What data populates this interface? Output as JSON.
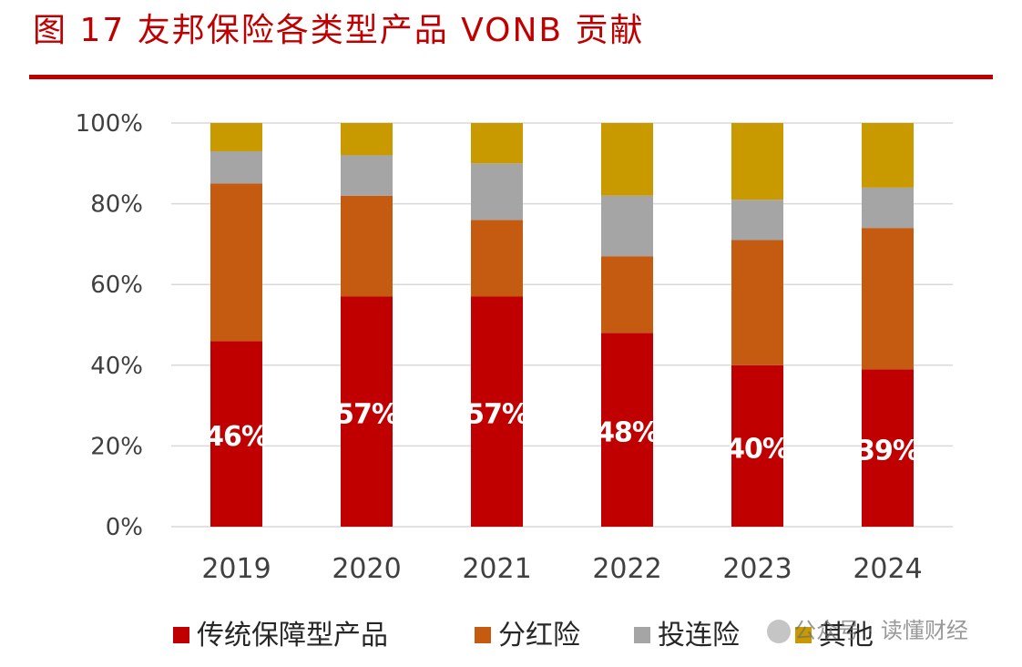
{
  "header": {
    "title": "图 17 友邦保险各类型产品 VONB 贡献"
  },
  "watermark": {
    "text": "公众号 · 读懂财经"
  },
  "colors": {
    "title": "#c00000",
    "series": [
      "#c00000",
      "#c55a11",
      "#a5a5a5",
      "#c99a00"
    ],
    "grid": "#d9d9d9",
    "label": "#ffffff"
  },
  "chart_data": {
    "type": "bar",
    "stacked": true,
    "categories": [
      "2019",
      "2020",
      "2021",
      "2022",
      "2023",
      "2024"
    ],
    "series": [
      {
        "name": "传统保障型产品",
        "values": [
          46,
          57,
          57,
          48,
          40,
          39
        ],
        "labels": [
          "46%",
          "57%",
          "57%",
          "48%",
          "40%",
          "39%"
        ]
      },
      {
        "name": "分红险",
        "values": [
          39,
          25,
          19,
          19,
          31,
          35
        ]
      },
      {
        "name": "投连险",
        "values": [
          8,
          10,
          14,
          15,
          10,
          10
        ]
      },
      {
        "name": "其他",
        "values": [
          7,
          8,
          10,
          18,
          19,
          16
        ]
      }
    ],
    "y_ticks": [
      "0%",
      "20%",
      "40%",
      "60%",
      "80%",
      "100%"
    ],
    "ylim": [
      0,
      100
    ],
    "grid": true,
    "legend": "bottom"
  }
}
